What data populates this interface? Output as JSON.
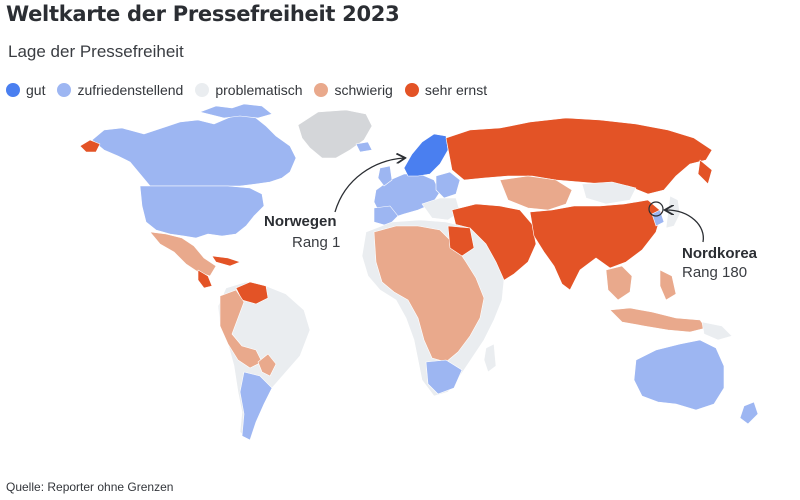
{
  "title": "Weltkarte der Pressefreiheit 2023",
  "subtitle": "Lage der Pressefreiheit",
  "legend": [
    {
      "label": "gut",
      "color": "#4a7ff0"
    },
    {
      "label": "zufriedenstellend",
      "color": "#9db6f2"
    },
    {
      "label": "problematisch",
      "color": "#eaedf0"
    },
    {
      "label": "schwierig",
      "color": "#e9a98c"
    },
    {
      "label": "sehr ernst",
      "color": "#e35326"
    }
  ],
  "callouts": {
    "norway": {
      "name": "Norwegen",
      "rank": "Rang 1"
    },
    "north_korea": {
      "name": "Nordkorea",
      "rank": "Rang 180"
    }
  },
  "source": "Quelle: Reporter ohne Grenzen",
  "colors": {
    "gut": "#4a7ff0",
    "zufriedenstellend": "#9db6f2",
    "problematisch": "#eaedf0",
    "schwierig": "#e9a98c",
    "sehr_ernst": "#e35326",
    "no_data": "#d4d6d9"
  }
}
